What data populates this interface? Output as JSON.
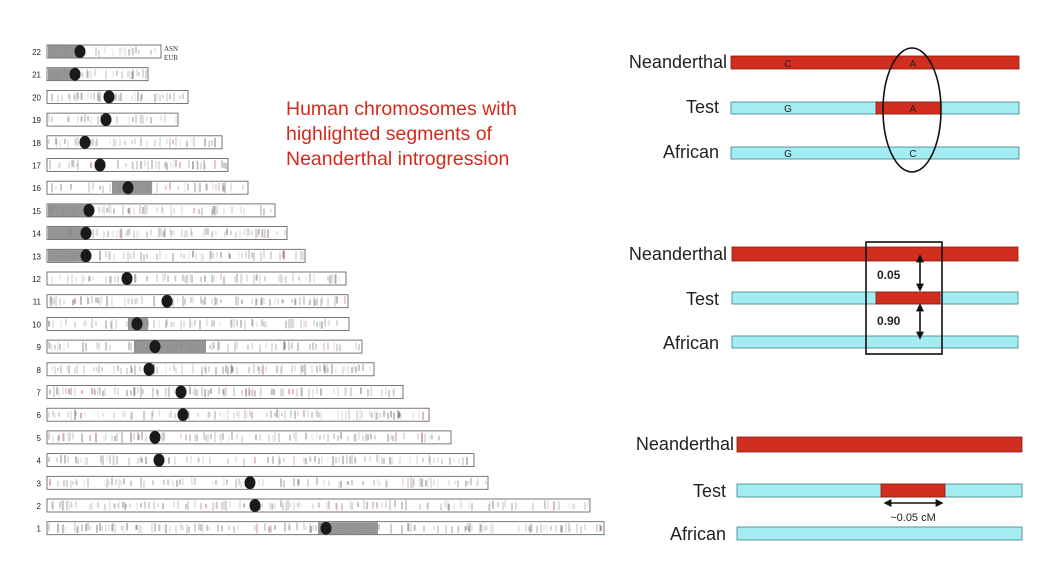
{
  "title_lines": [
    "Human chromosomes with",
    "highlighted  segments  of",
    "Neanderthal introgression"
  ],
  "legend": {
    "asn": "ASN",
    "eur": "EUR"
  },
  "colors": {
    "neanderthal": "#d22e1f",
    "human": "#a3ecf2",
    "title": "#d42a1e",
    "centromere": "#1a1a1a",
    "band": "#6b6b6b",
    "highlight": "#8a8a8a"
  },
  "chromosomes": [
    {
      "label": "22"
    },
    {
      "label": "21"
    },
    {
      "label": "20"
    },
    {
      "label": "19"
    },
    {
      "label": "18"
    },
    {
      "label": "17"
    },
    {
      "label": "16"
    },
    {
      "label": "15"
    },
    {
      "label": "14"
    },
    {
      "label": "13"
    },
    {
      "label": "12"
    },
    {
      "label": "11"
    },
    {
      "label": "10"
    },
    {
      "label": "9"
    },
    {
      "label": "8"
    },
    {
      "label": "7"
    },
    {
      "label": "6"
    },
    {
      "label": "5"
    },
    {
      "label": "4"
    },
    {
      "label": "3"
    },
    {
      "label": "2"
    },
    {
      "label": "1"
    }
  ],
  "panel1": {
    "rows": [
      {
        "label": "Neanderthal",
        "allele_left": "C",
        "allele_right": "A"
      },
      {
        "label": "Test",
        "allele_left": "G",
        "allele_right": "A"
      },
      {
        "label": "African",
        "allele_left": "G",
        "allele_right": "C"
      }
    ]
  },
  "panel2": {
    "rows": [
      {
        "label": "Neanderthal"
      },
      {
        "label": "Test"
      },
      {
        "label": "African"
      }
    ],
    "upper_value": "0.05",
    "lower_value": "0.90"
  },
  "panel3": {
    "rows": [
      {
        "label": "Neanderthal"
      },
      {
        "label": "Test"
      },
      {
        "label": "African"
      }
    ],
    "length_label": "~0.05 cM"
  }
}
